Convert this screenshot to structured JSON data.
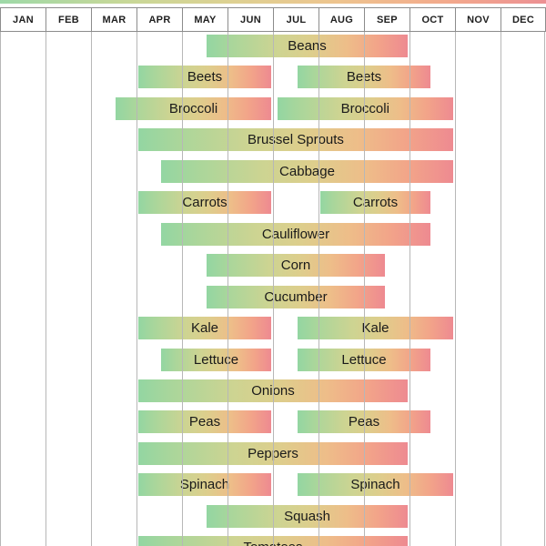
{
  "header": {
    "months": [
      "JAN",
      "FEB",
      "MAR",
      "APR",
      "MAY",
      "JUN",
      "JUL",
      "AUG",
      "SEP",
      "OCT",
      "NOV",
      "DEC"
    ]
  },
  "chart_data": {
    "type": "bar",
    "subtype": "gantt-planting-calendar",
    "categories": [
      "JAN",
      "FEB",
      "MAR",
      "APR",
      "MAY",
      "JUN",
      "JUL",
      "AUG",
      "SEP",
      "OCT",
      "NOV",
      "DEC"
    ],
    "month_scale_note": "bar start/end in month units: 0 = Jan 1, 12 = Dec 31",
    "rows": [
      {
        "label": "Beans",
        "bars": [
          {
            "start": 4.5,
            "end": 9.0
          }
        ]
      },
      {
        "label": "Beets",
        "bars": [
          {
            "start": 3.0,
            "end": 6.0
          },
          {
            "start": 6.5,
            "end": 9.5
          }
        ]
      },
      {
        "label": "Broccoli",
        "bars": [
          {
            "start": 2.5,
            "end": 6.0
          },
          {
            "start": 6.05,
            "end": 10.0
          }
        ]
      },
      {
        "label": "Brussel Sprouts",
        "bars": [
          {
            "start": 3.0,
            "end": 10.0
          }
        ]
      },
      {
        "label": "Cabbage",
        "bars": [
          {
            "start": 3.5,
            "end": 10.0
          }
        ]
      },
      {
        "label": "Carrots",
        "bars": [
          {
            "start": 3.0,
            "end": 6.0
          },
          {
            "start": 7.0,
            "end": 9.5
          }
        ]
      },
      {
        "label": "Cauliflower",
        "bars": [
          {
            "start": 3.5,
            "end": 9.5
          }
        ]
      },
      {
        "label": "Corn",
        "bars": [
          {
            "start": 4.5,
            "end": 8.5
          }
        ]
      },
      {
        "label": "Cucumber",
        "bars": [
          {
            "start": 4.5,
            "end": 8.5
          }
        ]
      },
      {
        "label": "Kale",
        "bars": [
          {
            "start": 3.0,
            "end": 6.0
          },
          {
            "start": 6.5,
            "end": 10.0
          }
        ]
      },
      {
        "label": "Lettuce",
        "bars": [
          {
            "start": 3.5,
            "end": 6.0
          },
          {
            "start": 6.5,
            "end": 9.5
          }
        ]
      },
      {
        "label": "Onions",
        "bars": [
          {
            "start": 3.0,
            "end": 9.0
          }
        ]
      },
      {
        "label": "Peas",
        "bars": [
          {
            "start": 3.0,
            "end": 6.0
          },
          {
            "start": 6.5,
            "end": 9.5
          }
        ]
      },
      {
        "label": "Peppers",
        "bars": [
          {
            "start": 3.0,
            "end": 9.0
          }
        ]
      },
      {
        "label": "Spinach",
        "bars": [
          {
            "start": 3.0,
            "end": 6.0
          },
          {
            "start": 6.5,
            "end": 10.0
          }
        ]
      },
      {
        "label": "Squash",
        "bars": [
          {
            "start": 4.5,
            "end": 9.0
          }
        ]
      },
      {
        "label": "Tomatoes",
        "bars": [
          {
            "start": 3.0,
            "end": 9.0
          }
        ]
      }
    ],
    "legend_position": "none",
    "grid": "vertical-month-lines"
  },
  "colors": {
    "bar_gradient_stops": [
      "#93d6a2",
      "#a9d69b",
      "#cdd492",
      "#ddce8c",
      "#eebd89",
      "#f2a489",
      "#ee8a91"
    ],
    "top_strip_gradient": [
      "#9ed9a8",
      "#ddd192",
      "#ec9093"
    ],
    "gridline": "#b7b7b7",
    "header_border": "#8c8c8c",
    "label_text": "#1a1a1a",
    "background": "#ffffff"
  }
}
